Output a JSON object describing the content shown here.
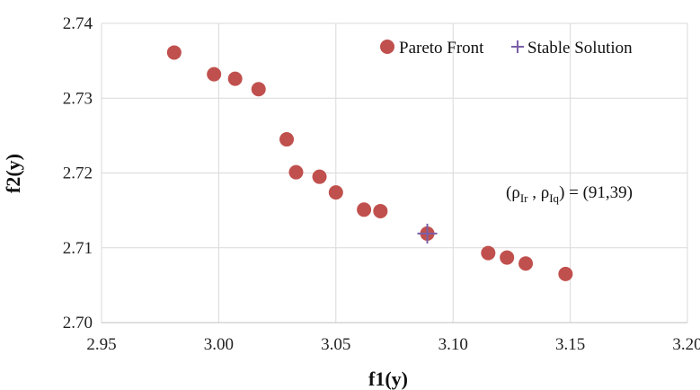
{
  "chart_data": {
    "type": "scatter",
    "xlabel": "f1(y)",
    "ylabel": "f2(y)",
    "xlim": [
      2.95,
      3.2
    ],
    "ylim": [
      2.7,
      2.74
    ],
    "x_ticks": [
      "2.95",
      "3.00",
      "3.05",
      "3.10",
      "3.15",
      "3.20"
    ],
    "y_ticks": [
      "2.70",
      "2.71",
      "2.72",
      "2.73",
      "2.74"
    ],
    "grid": {
      "x": true,
      "y": true
    },
    "legend_position": "top-right",
    "series": [
      {
        "name": "Pareto Front",
        "marker": "circle",
        "color": "#C0504D",
        "x": [
          2.981,
          2.998,
          3.007,
          3.017,
          3.029,
          3.033,
          3.043,
          3.05,
          3.062,
          3.069,
          3.089,
          3.115,
          3.123,
          3.131,
          3.148
        ],
        "y": [
          2.7361,
          2.7332,
          2.7326,
          2.7312,
          2.7245,
          2.7201,
          2.7195,
          2.7174,
          2.7151,
          2.7149,
          2.7119,
          2.7093,
          2.7087,
          2.7079,
          2.7065
        ]
      },
      {
        "name": "Stable Solution",
        "marker": "plus",
        "color": "#7A5FA8",
        "x": [
          3.089
        ],
        "y": [
          2.7119
        ]
      }
    ],
    "annotation": {
      "text_open": "(ρ",
      "sub1": "Ir",
      "text_mid": " , ρ",
      "sub2": "Iq",
      "text_close": ") = (91,39)"
    }
  }
}
